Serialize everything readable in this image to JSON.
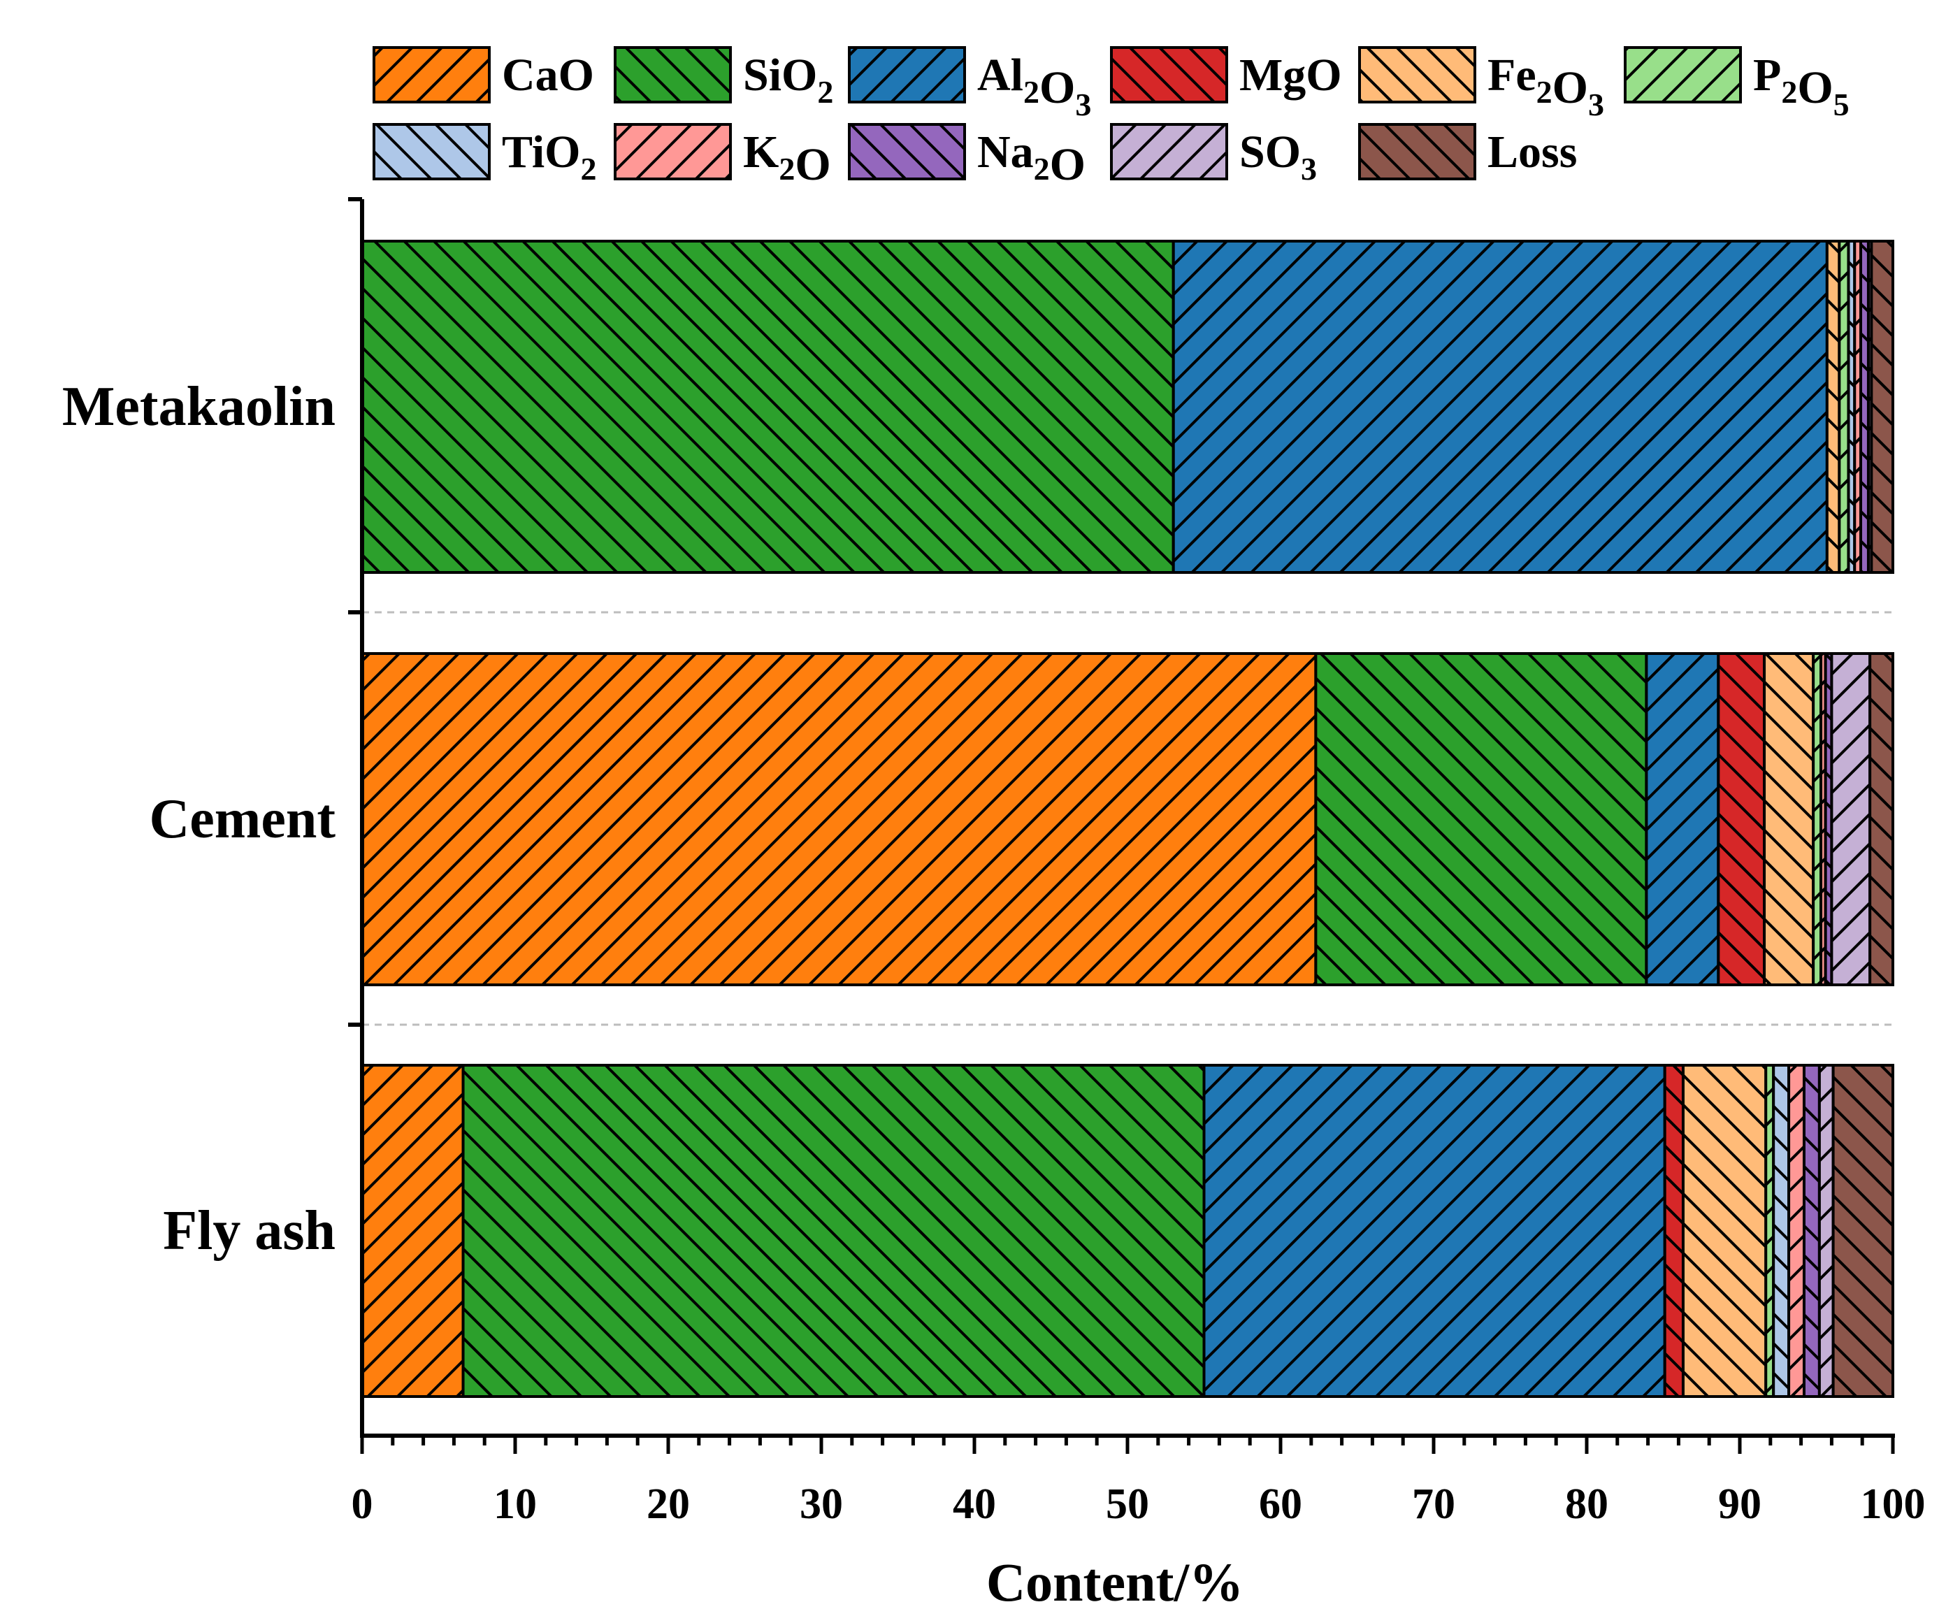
{
  "chart_data": {
    "type": "bar",
    "orientation": "horizontal",
    "stacked": true,
    "title": "",
    "xlabel": "Content/%",
    "ylabel": "",
    "xlim": [
      0,
      100
    ],
    "xticks": [
      "0",
      "10",
      "20",
      "30",
      "40",
      "50",
      "60",
      "70",
      "80",
      "90",
      "100"
    ],
    "categories": [
      "Metakaolin",
      "Cement",
      "Fly ash"
    ],
    "series": [
      {
        "name": "CaO",
        "label_main": "CaO",
        "label_sub": "",
        "label_tail": "",
        "color": "#ff7f0e",
        "hatch": "fwd",
        "values": [
          0.0,
          62.3,
          6.6
        ]
      },
      {
        "name": "SiO2",
        "label_main": "SiO",
        "label_sub": "2",
        "label_tail": "",
        "color": "#2ca02c",
        "hatch": "back",
        "values": [
          53.0,
          21.6,
          48.4
        ]
      },
      {
        "name": "Al2O3",
        "label_main": "Al",
        "label_sub": "2",
        "label_tail": "O",
        "label_sub2": "3",
        "color": "#1f77b4",
        "hatch": "fwd",
        "values": [
          42.7,
          4.7,
          30.1
        ]
      },
      {
        "name": "MgO",
        "label_main": "MgO",
        "label_sub": "",
        "label_tail": "",
        "color": "#d62728",
        "hatch": "back",
        "values": [
          0.0,
          3.0,
          1.2
        ]
      },
      {
        "name": "Fe2O3",
        "label_main": "Fe",
        "label_sub": "2",
        "label_tail": "O",
        "label_sub2": "3",
        "color": "#ffbb78",
        "hatch": "back",
        "values": [
          0.8,
          3.2,
          5.4
        ]
      },
      {
        "name": "P2O5",
        "label_main": "P",
        "label_sub": "2",
        "label_tail": "O",
        "label_sub2": "5",
        "color": "#98df8a",
        "hatch": "fwd",
        "values": [
          0.6,
          0.5,
          0.5
        ]
      },
      {
        "name": "TiO2",
        "label_main": "TiO",
        "label_sub": "2",
        "label_tail": "",
        "color": "#aec7e8",
        "hatch": "back",
        "values": [
          0.4,
          0.0,
          1.0
        ]
      },
      {
        "name": "K2O",
        "label_main": "K",
        "label_sub": "2",
        "label_tail": "O",
        "color": "#ff9896",
        "hatch": "fwd",
        "values": [
          0.4,
          0.3,
          1.0
        ]
      },
      {
        "name": "Na2O",
        "label_main": "Na",
        "label_sub": "2",
        "label_tail": "O",
        "color": "#9467bd",
        "hatch": "back",
        "values": [
          0.5,
          0.4,
          1.0
        ]
      },
      {
        "name": "SO3",
        "label_main": "SO",
        "label_sub": "3",
        "label_tail": "",
        "color": "#c5b0d5",
        "hatch": "fwd",
        "values": [
          0.2,
          2.5,
          0.9
        ]
      },
      {
        "name": "Loss",
        "label_main": "Loss",
        "label_sub": "",
        "label_tail": "",
        "color": "#8c564b",
        "hatch": "back",
        "values": [
          1.4,
          1.5,
          3.9
        ]
      }
    ],
    "legend_position": "top",
    "grid": false
  }
}
